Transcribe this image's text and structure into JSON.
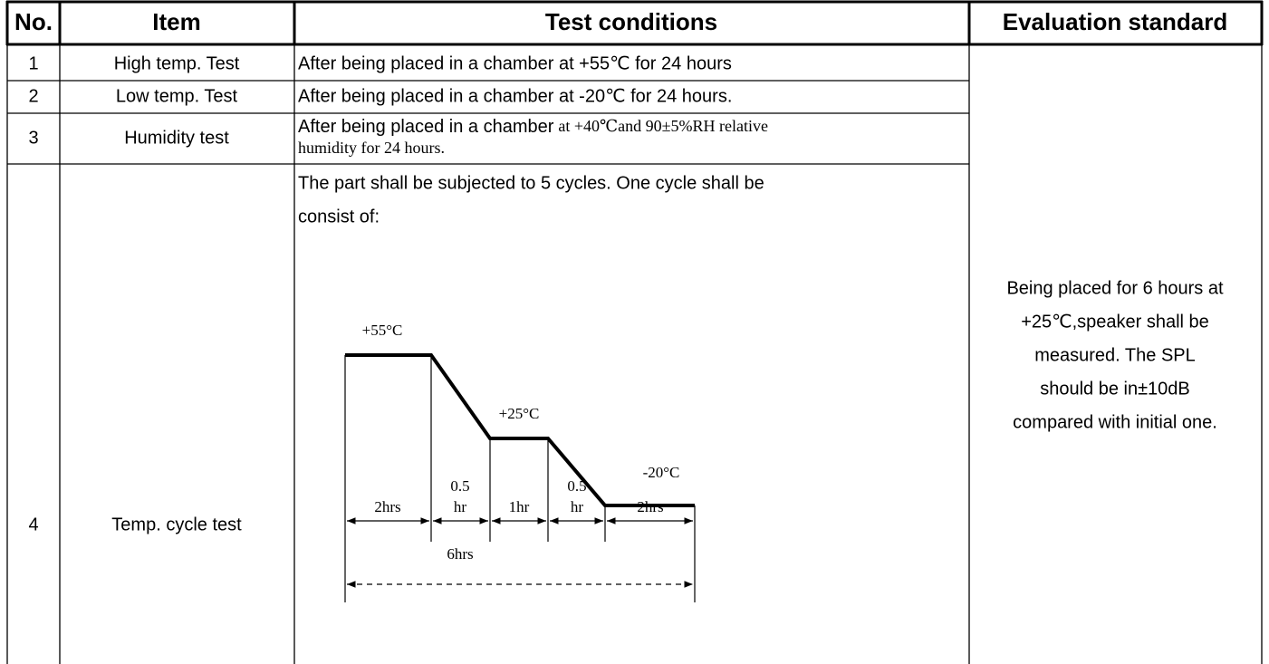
{
  "table": {
    "header": [
      "No.",
      "Item",
      "Test conditions",
      "Evaluation standard"
    ],
    "rows": [
      {
        "no": "1",
        "item": "High temp. Test",
        "conditions": [
          "After being placed in a chamber at +55℃  for 24 hours"
        ]
      },
      {
        "no": "2",
        "item": "Low temp. Test",
        "conditions": [
          "After being placed in a chamber at -20℃  for 24 hours."
        ]
      },
      {
        "no": "3",
        "item": "Humidity test",
        "conditions": [
          "After being placed in a chamber",
          "at +40℃and 90±5%RH relative",
          "humidity for 24 hours."
        ]
      },
      {
        "no": "4",
        "item": "Temp. cycle test",
        "conditions": [
          "The part shall be subjected to 5 cycles. One cycle shall be",
          "consist of:"
        ]
      }
    ],
    "evaluation": [
      "Being placed for 6 hours at",
      "+25℃,speaker shall be",
      "measured. The SPL",
      "should be in±10dB",
      "compared with initial one."
    ]
  },
  "diagram": {
    "levels": [
      "+55°C",
      "+25°C",
      "-20°C"
    ],
    "segments": [
      [
        "2hrs"
      ],
      [
        "0.5",
        "hr"
      ],
      [
        "1hr"
      ],
      [
        "0.5",
        "hr"
      ],
      [
        "2hrs"
      ]
    ],
    "total": "6hrs"
  }
}
